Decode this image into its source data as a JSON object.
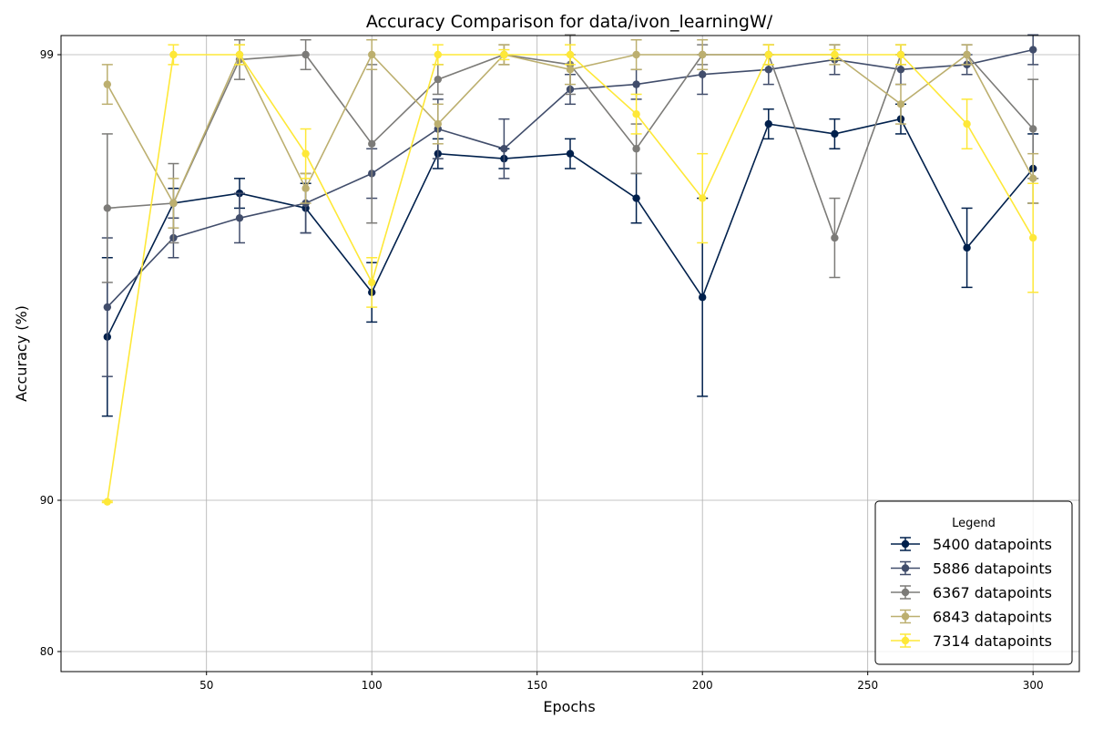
{
  "chart_data": {
    "type": "line",
    "title": "Accuracy Comparison for data/ivon_learningW/",
    "xlabel": "Epochs",
    "ylabel": "Accuracy (%)",
    "scale": "piecewise-nonlinear",
    "xlim": [
      6,
      314
    ],
    "x_ticks": [
      50,
      100,
      150,
      200,
      250,
      300
    ],
    "y_ticks": [
      80,
      90,
      99
    ],
    "grid": true,
    "legend": {
      "title": "Legend",
      "placement": "bottom-right"
    },
    "x": [
      20,
      40,
      60,
      80,
      100,
      120,
      140,
      160,
      180,
      200,
      220,
      240,
      260,
      280,
      300
    ],
    "series": [
      {
        "name": "5400 datapoints",
        "color": "#00204c",
        "values": [
          93.3,
          96.0,
          96.2,
          95.9,
          94.2,
          97.0,
          96.9,
          97.0,
          96.1,
          94.1,
          97.6,
          97.4,
          97.7,
          95.1,
          96.7
        ],
        "errors": [
          1.6,
          0.3,
          0.3,
          0.5,
          0.6,
          0.3,
          0.2,
          0.3,
          0.5,
          2.0,
          0.3,
          0.3,
          0.3,
          0.8,
          0.7
        ]
      },
      {
        "name": "5886 datapoints",
        "color": "#414d6b",
        "values": [
          93.9,
          95.3,
          95.7,
          96.0,
          96.6,
          97.5,
          97.1,
          98.3,
          98.4,
          98.6,
          98.7,
          98.9,
          98.7,
          98.8,
          99.1
        ],
        "errors": [
          1.4,
          0.4,
          0.5,
          0.6,
          0.5,
          0.6,
          0.6,
          0.3,
          0.3,
          0.4,
          0.3,
          0.3,
          0.3,
          0.2,
          0.3
        ]
      },
      {
        "name": "6367 datapoints",
        "color": "#7c7b78",
        "values": [
          95.9,
          96.0,
          98.9,
          99.0,
          97.2,
          98.5,
          99.0,
          98.8,
          97.1,
          99.0,
          99.0,
          95.3,
          99.0,
          99.0,
          97.5
        ],
        "errors": [
          1.5,
          0.8,
          0.4,
          0.3,
          1.6,
          0.3,
          0.2,
          0.6,
          0.5,
          0.2,
          0.2,
          0.8,
          0.2,
          0.2,
          1.0
        ]
      },
      {
        "name": "6843 datapoints",
        "color": "#bcaf6f",
        "values": [
          98.4,
          96.0,
          99.0,
          96.3,
          99.0,
          97.6,
          99.0,
          98.7,
          99.0,
          99.0,
          99.0,
          99.0,
          98.0,
          99.0,
          96.5
        ],
        "errors": [
          0.4,
          0.5,
          0.2,
          0.3,
          0.3,
          0.4,
          0.2,
          0.3,
          0.3,
          0.3,
          0.2,
          0.2,
          0.4,
          0.2,
          0.5
        ]
      },
      {
        "name": "7314 datapoints",
        "color": "#fee838",
        "values": [
          89.9,
          99.0,
          99.0,
          97.0,
          94.4,
          99.0,
          99.0,
          99.0,
          97.8,
          96.1,
          99.0,
          99.0,
          99.0,
          97.6,
          95.3
        ],
        "errors": [
          0.05,
          0.2,
          0.2,
          0.5,
          0.5,
          0.2,
          0.1,
          0.2,
          0.4,
          0.9,
          0.2,
          0.1,
          0.2,
          0.5,
          1.1
        ]
      }
    ]
  }
}
